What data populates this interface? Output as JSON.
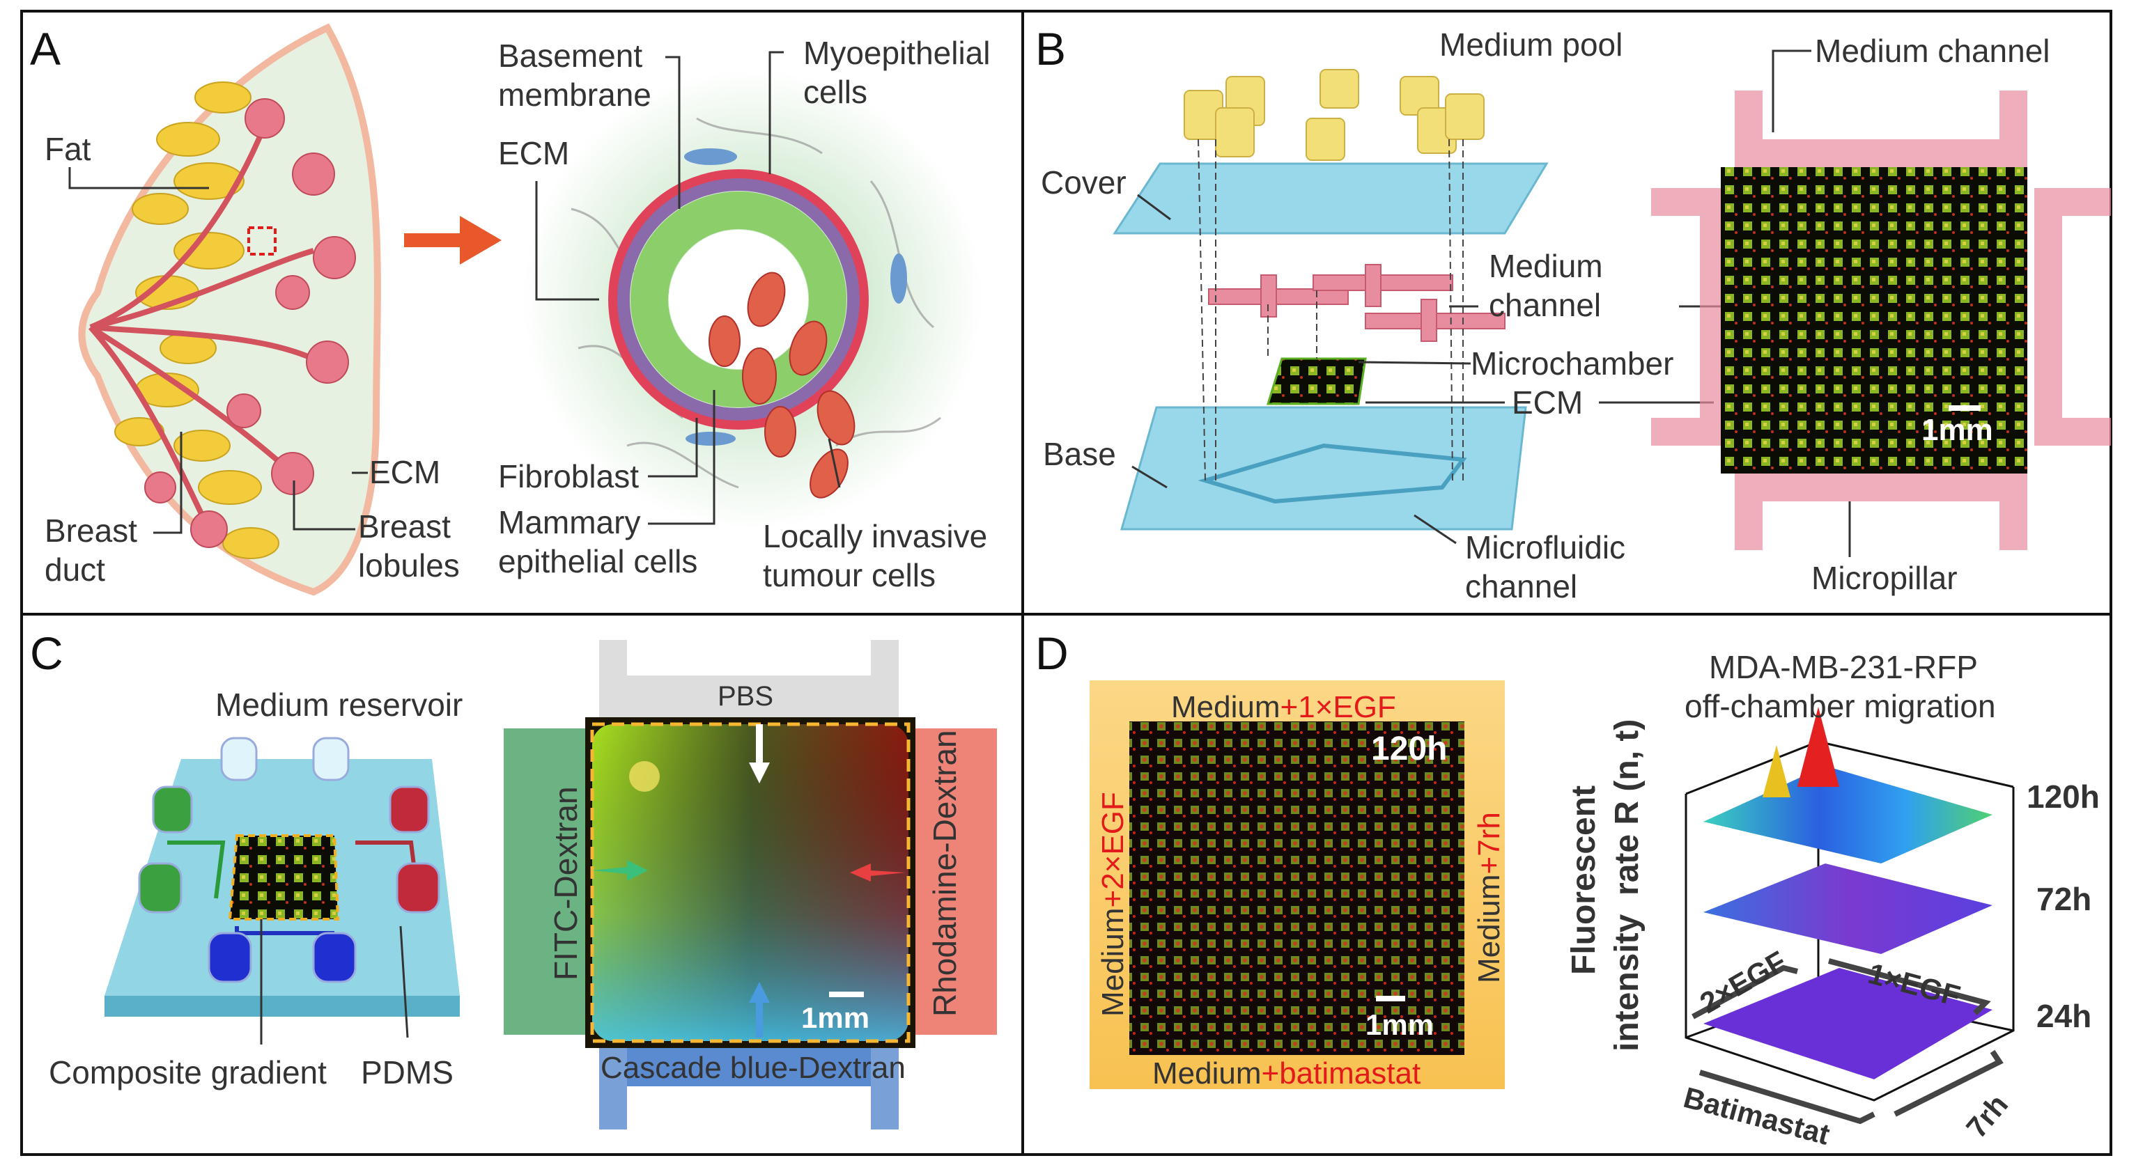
{
  "panels": {
    "A": {
      "letter": "A",
      "labels": {
        "fat": "Fat",
        "basement_membrane": "Basement\nmembrane",
        "myoepithelial": "Myoepithelial\ncells",
        "ecm_top": "ECM",
        "ecm_lobule": "ECM",
        "breast_lobules": "Breast\nlobules",
        "breast_duct": "Breast\nduct",
        "fibroblast": "Fibroblast",
        "mammary": "Mammary\nepithelial cells",
        "tumour": "Locally invasive\ntumour cells"
      }
    },
    "B": {
      "letter": "B",
      "labels": {
        "medium_pool": "Medium pool",
        "medium_channel_top": "Medium channel",
        "cover": "Cover",
        "medium_channel": "Medium\nchannel",
        "microchamber": "Microchamber",
        "ecm": "ECM",
        "scale": "1mm",
        "base": "Base",
        "microfluidic": "Microfluidic\nchannel",
        "micropillar": "Micropillar"
      }
    },
    "C": {
      "letter": "C",
      "labels": {
        "medium_reservoir": "Medium reservoir",
        "composite_gradient": "Composite gradient",
        "pdms": "PDMS",
        "pbs": "PBS",
        "fitc": "FITC-Dextran",
        "rhodamine": "Rhodamine-Dextran",
        "cascade": "Cascade blue-Dextran",
        "scale": "1mm"
      }
    },
    "D": {
      "letter": "D",
      "labels": {
        "top_prefix": "Medium",
        "top_suffix": "+1×EGF",
        "left_prefix": "Medium",
        "left_suffix": "+2×EGF",
        "right_prefix": "Medium",
        "right_suffix": "+7rh",
        "bottom_prefix": "Medium",
        "bottom_suffix": "+batimastat",
        "time": "120h",
        "scale": "1mm"
      },
      "plot": {
        "title_line1": "MDA-MB-231-RFP",
        "title_line2": "off-chamber migration",
        "ylabel_line1": "Fluorescent",
        "ylabel_line2": "intensity  rate R (n, t)",
        "layers": [
          "120h",
          "72h",
          "24h"
        ],
        "axis_2egf": "2×EGF",
        "axis_1egf": "1×EGF",
        "axis_batimastat": "Batimastat",
        "axis_7rh": "7rh"
      }
    }
  },
  "colors": {
    "accent_red": "#e41a1a",
    "fat_yellow": "#f2cc3a",
    "lobule_pink": "#e8798a",
    "chip_blue": "#8fd3e8",
    "channel_pink": "#e88ca0",
    "frame_orange": "#f7b733"
  }
}
